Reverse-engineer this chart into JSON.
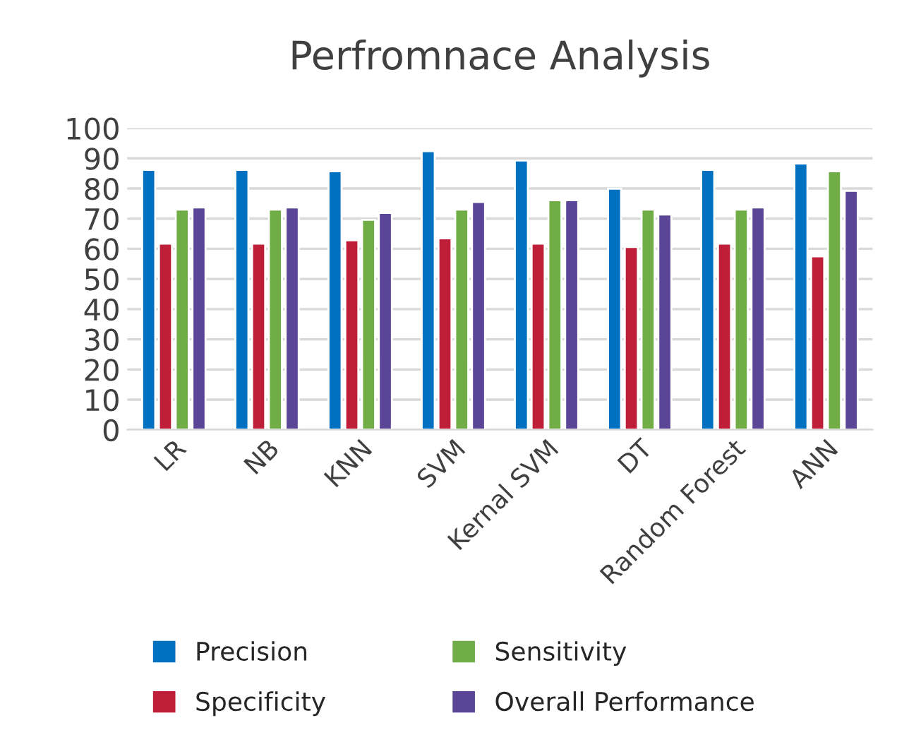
{
  "chart_data": {
    "type": "bar",
    "title": "Perfromnace Analysis",
    "categories": [
      "LR",
      "NB",
      "KNN",
      "SVM",
      "Kernal SVM",
      "DT",
      "Random Forest",
      "ANN"
    ],
    "series": [
      {
        "name": "Precision",
        "color": "#0070c0",
        "values": [
          86.2,
          86.2,
          85.7,
          92.4,
          89.3,
          79.9,
          86.2,
          88.3
        ]
      },
      {
        "name": "Specificity",
        "color": "#be1e37",
        "values": [
          61.7,
          61.7,
          62.8,
          63.5,
          61.7,
          60.6,
          61.7,
          57.5
        ]
      },
      {
        "name": "Sensitivity",
        "color": "#70ad47",
        "values": [
          73,
          73,
          69.6,
          73,
          76.1,
          73,
          73,
          85.7
        ]
      },
      {
        "name": "Overall Performance",
        "color": "#5b4597",
        "values": [
          73.7,
          73.7,
          71.9,
          75.5,
          76.1,
          71.4,
          73.7,
          79.2
        ]
      }
    ],
    "ylim": [
      0,
      100
    ],
    "yticks": [
      0,
      10,
      20,
      30,
      40,
      50,
      60,
      70,
      80,
      90,
      100
    ],
    "grid": "y",
    "legend": "bottom"
  }
}
